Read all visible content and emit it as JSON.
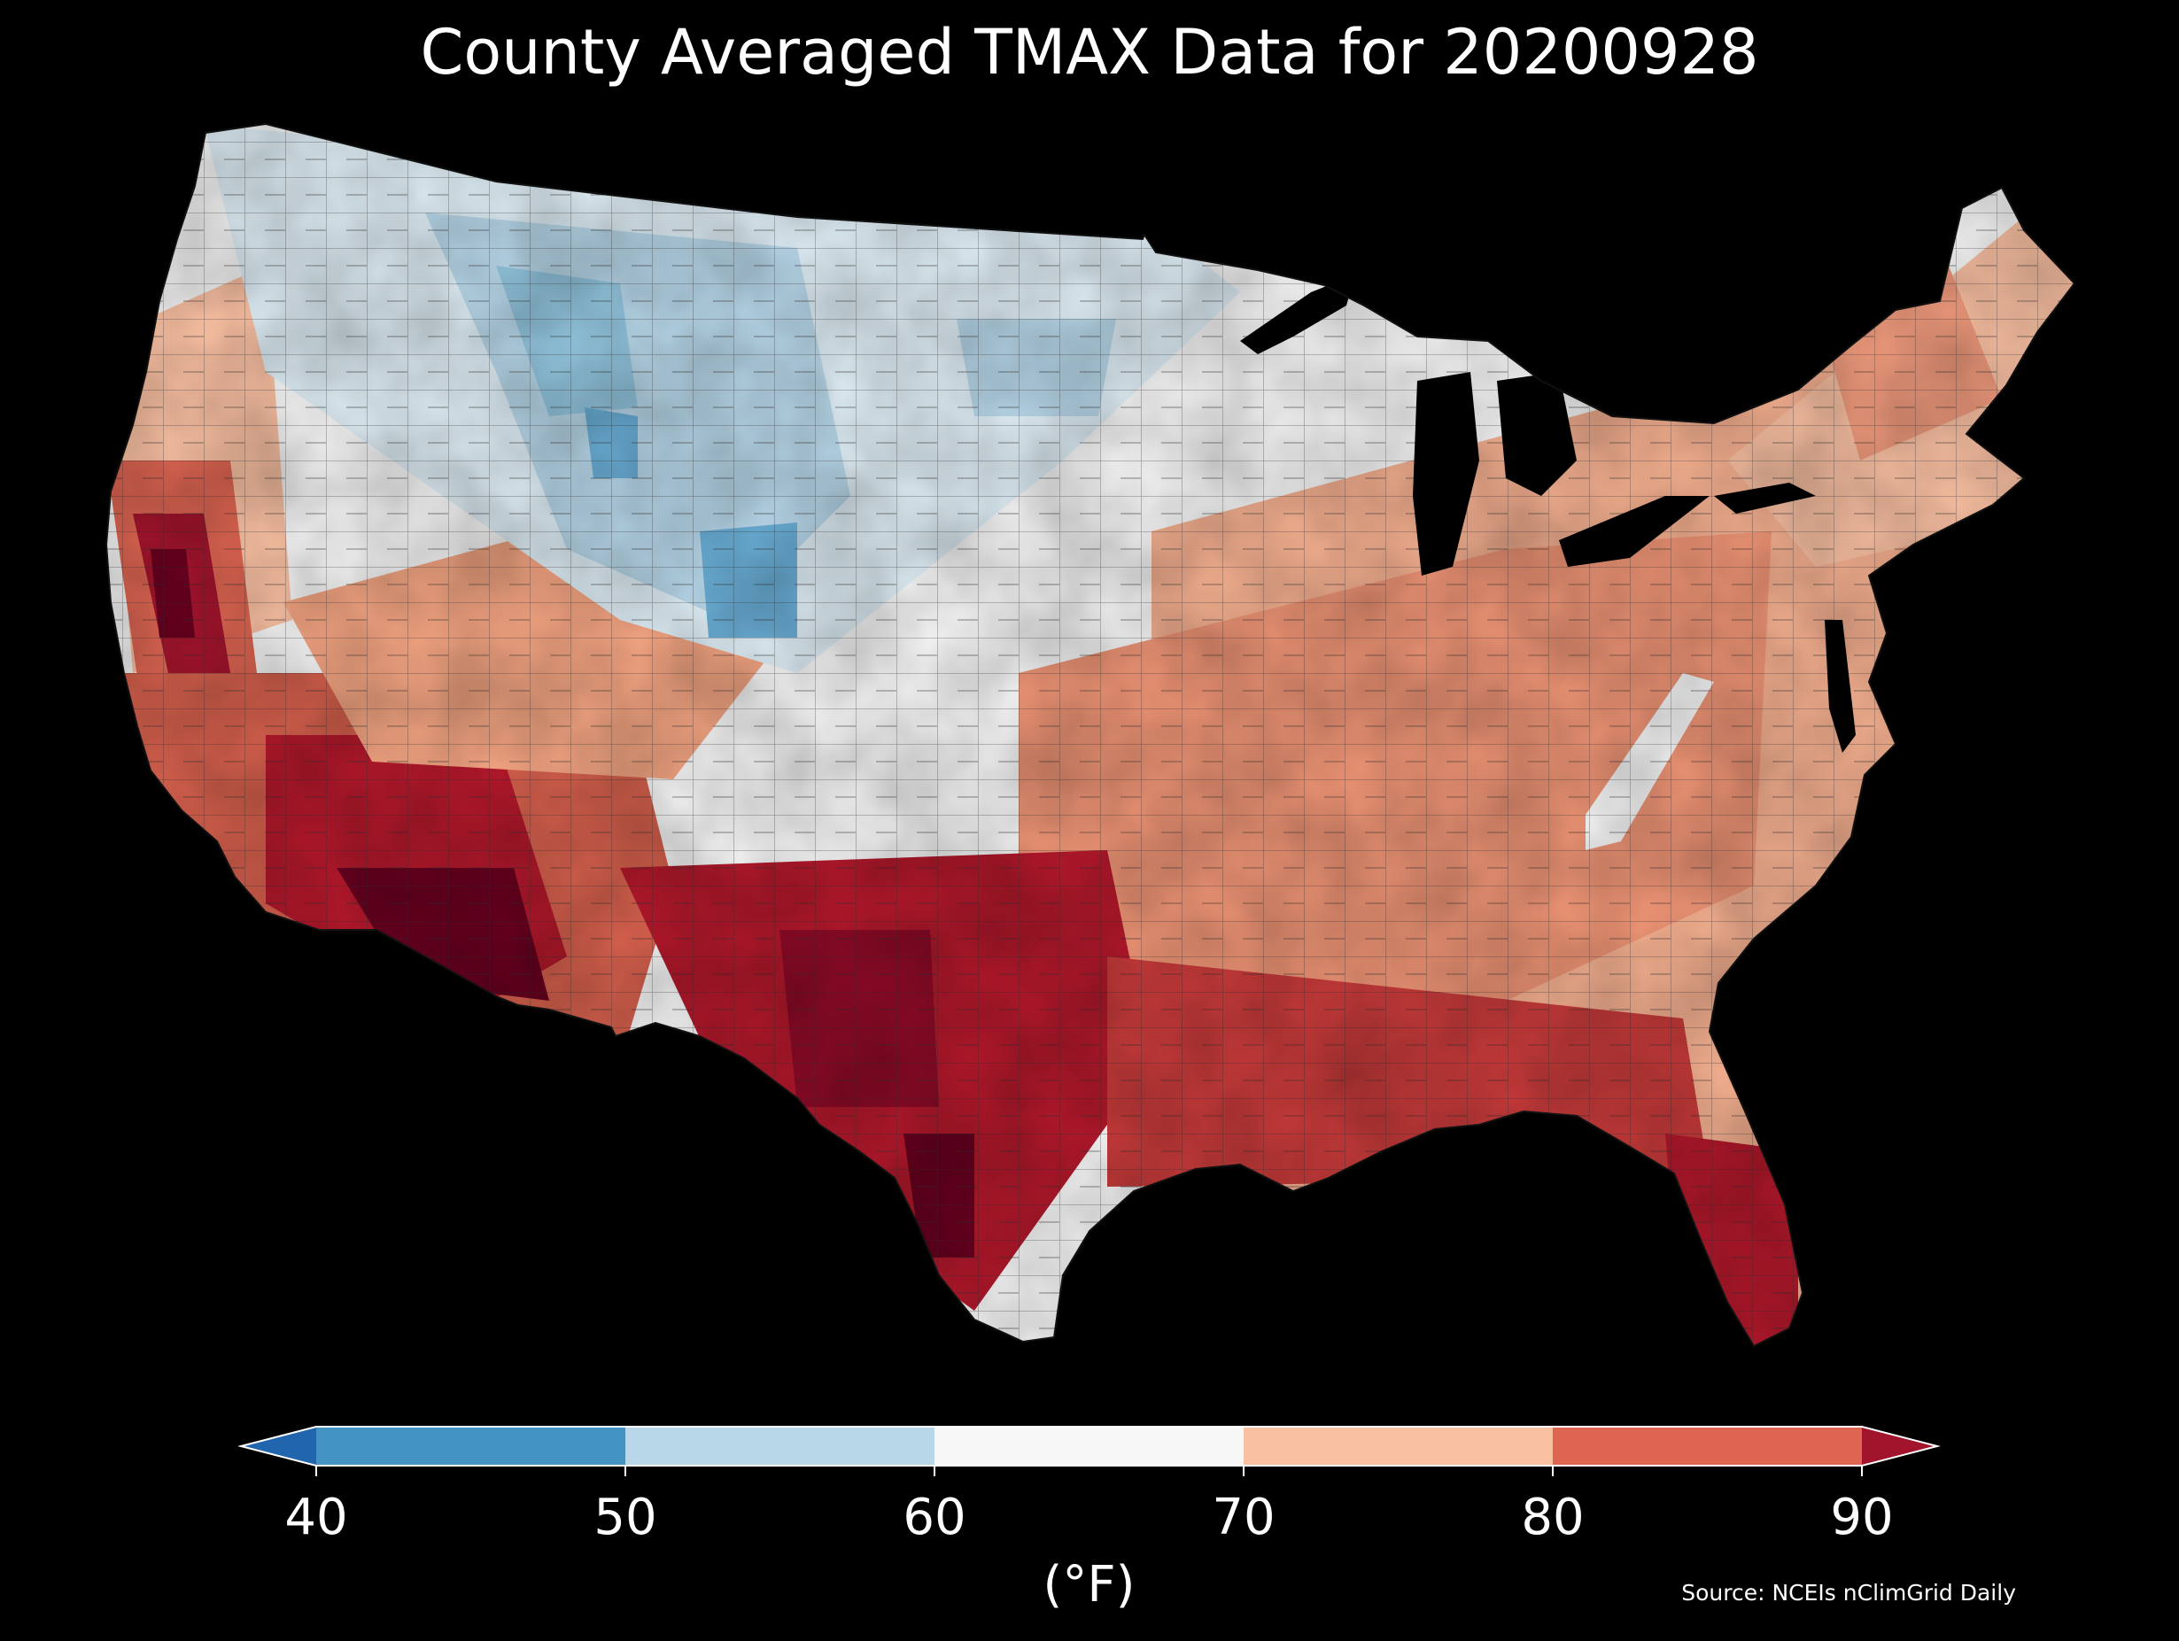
{
  "title": "County Averaged TMAX Data for 20200928",
  "source": "Source: NCEIs nClimGrid Daily",
  "colorbar": {
    "unit_label": "(°F)",
    "ticks": [
      40,
      50,
      60,
      70,
      80,
      90
    ],
    "extend": "both",
    "bins": [
      {
        "from": 40,
        "to": 50,
        "color": "#4393c3"
      },
      {
        "from": 50,
        "to": 60,
        "color": "#b8d8ea"
      },
      {
        "from": 60,
        "to": 70,
        "color": "#f7f7f7"
      },
      {
        "from": 70,
        "to": 80,
        "color": "#f9c0a2"
      },
      {
        "from": 80,
        "to": 90,
        "color": "#de6552"
      }
    ],
    "under_color": "#2166ac",
    "over_color": "#a2142c"
  },
  "colors": {
    "background": "#000000",
    "text": "#ffffff",
    "county_border": "#222222",
    "water": "#000000"
  }
}
